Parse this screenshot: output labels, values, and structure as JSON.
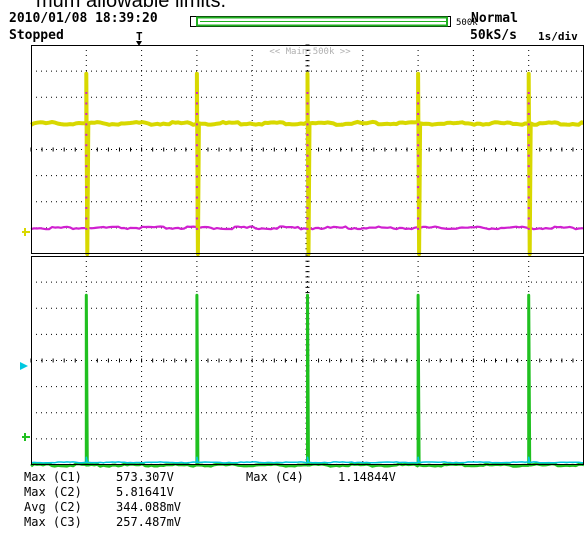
{
  "caption": "mum allowable limits.",
  "header": {
    "datetime": "2010/01/08 18:39:20",
    "status": "Stopped",
    "trigger_marker": "T",
    "memory_label": "500k",
    "trigger_mode": "Normal",
    "sample_rate": "50kS/s",
    "timebase": "1s/div",
    "main_label": "<< Main:500k >>"
  },
  "colors": {
    "ch1": "#d8d800",
    "ch2": "#d020d0",
    "ch3": "#00c8e0",
    "ch4": "#20c020",
    "grid": "#000000",
    "frame": "#000000"
  },
  "chart_data": [
    {
      "type": "line",
      "panel": "upper",
      "x_divisions": 10,
      "y_divisions": 8,
      "grid": true,
      "pulse_times_div": [
        1.0,
        3.0,
        5.0,
        7.0,
        9.0
      ],
      "series": [
        {
          "channel": "C1",
          "color": "#d8d800",
          "baseline_div": 5.0,
          "pulse_high_div": 6.9,
          "pulse_low_div": 0.0
        },
        {
          "channel": "C2",
          "color": "#d020d0",
          "baseline_div": 1.0,
          "pulse_high_div": 6.7,
          "pulse_low_div": 1.0
        }
      ]
    },
    {
      "type": "line",
      "panel": "lower",
      "x_divisions": 10,
      "y_divisions": 8,
      "grid": true,
      "pulse_times_div": [
        1.0,
        3.0,
        5.0,
        7.0,
        9.0
      ],
      "series": [
        {
          "channel": "C4",
          "color": "#20c020",
          "baseline_div": 0.0,
          "pulse_high_div": 6.5,
          "pulse_low_div": 0.0
        },
        {
          "channel": "C3",
          "color": "#00c8e0",
          "baseline_div": 0.1,
          "pulse_high_div": 0.3,
          "pulse_low_div": 0.1
        }
      ]
    }
  ],
  "measurements": [
    {
      "label": "Max (C1)",
      "value": "573.307V"
    },
    {
      "label": "Max (C4)",
      "value": "1.14844V"
    },
    {
      "label": "Max (C2)",
      "value": "5.81641V"
    },
    {
      "label": "Avg (C2)",
      "value": "344.088mV"
    },
    {
      "label": "Max (C3)",
      "value": "257.487mV"
    }
  ]
}
